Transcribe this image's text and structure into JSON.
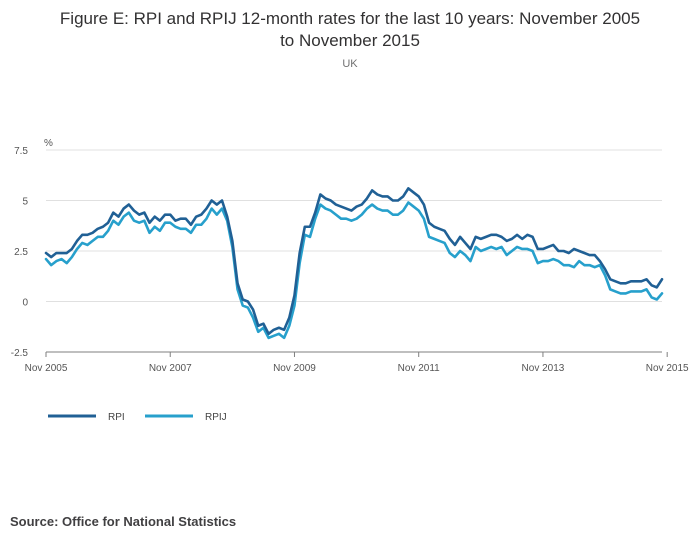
{
  "title_lines": [
    "Figure E: RPI and RPIJ 12-month rates for the last 10 years: November 2005",
    "to November 2015"
  ],
  "subtitle": "UK",
  "source": "Source: Office for National Statistics",
  "colors": {
    "RPI": "#206095",
    "RPIJ": "#27a0cc",
    "grid": "#e0e0e0",
    "axis": "#7f7f7f"
  },
  "chart_data": {
    "type": "line",
    "ylabel": "%",
    "ylim": [
      -2.5,
      7.5
    ],
    "yticks": [
      -2.5,
      0,
      2.5,
      5,
      7.5
    ],
    "ytick_labels": [
      "-2.5",
      "0",
      "2.5",
      "5",
      "7.5"
    ],
    "xtick_labels": [
      "Nov 2005",
      "Nov 2007",
      "Nov 2009",
      "Nov 2011",
      "Nov 2013",
      "Nov 2015"
    ],
    "xtick_index": [
      0,
      24,
      48,
      72,
      96,
      120
    ],
    "grid": true,
    "legend_position": "bottom-left",
    "series": [
      {
        "name": "RPI",
        "values": [
          2.4,
          2.2,
          2.4,
          2.4,
          2.4,
          2.6,
          3.0,
          3.3,
          3.3,
          3.4,
          3.6,
          3.7,
          3.9,
          4.4,
          4.2,
          4.6,
          4.8,
          4.5,
          4.3,
          4.4,
          3.9,
          4.2,
          4.0,
          4.3,
          4.3,
          4.0,
          4.1,
          4.1,
          3.8,
          4.2,
          4.3,
          4.6,
          5.0,
          4.8,
          5.0,
          4.2,
          3.0,
          0.9,
          0.1,
          0.0,
          -0.4,
          -1.2,
          -1.1,
          -1.6,
          -1.4,
          -1.3,
          -1.4,
          -0.8,
          0.3,
          2.4,
          3.7,
          3.7,
          4.4,
          5.3,
          5.1,
          5.0,
          4.8,
          4.7,
          4.6,
          4.5,
          4.7,
          4.8,
          5.1,
          5.5,
          5.3,
          5.2,
          5.2,
          5.0,
          5.0,
          5.2,
          5.6,
          5.4,
          5.2,
          4.8,
          3.9,
          3.7,
          3.6,
          3.5,
          3.1,
          2.8,
          3.2,
          2.9,
          2.6,
          3.2,
          3.1,
          3.2,
          3.3,
          3.3,
          3.2,
          3.0,
          3.1,
          3.3,
          3.1,
          3.3,
          3.2,
          2.6,
          2.6,
          2.7,
          2.8,
          2.5,
          2.5,
          2.4,
          2.6,
          2.5,
          2.4,
          2.3,
          2.3,
          2.0,
          1.6,
          1.1,
          1.0,
          0.9,
          0.9,
          1.0,
          1.0,
          1.0,
          1.1,
          0.8,
          0.7,
          1.1
        ]
      },
      {
        "name": "RPIJ",
        "values": [
          2.1,
          1.8,
          2.0,
          2.1,
          1.9,
          2.2,
          2.6,
          2.9,
          2.8,
          3.0,
          3.2,
          3.2,
          3.5,
          4.0,
          3.8,
          4.2,
          4.4,
          4.0,
          3.9,
          4.0,
          3.4,
          3.7,
          3.5,
          3.9,
          3.9,
          3.7,
          3.6,
          3.6,
          3.4,
          3.8,
          3.8,
          4.1,
          4.6,
          4.3,
          4.6,
          4.0,
          2.7,
          0.6,
          -0.2,
          -0.3,
          -0.8,
          -1.5,
          -1.3,
          -1.8,
          -1.7,
          -1.6,
          -1.8,
          -1.2,
          -0.2,
          1.9,
          3.3,
          3.2,
          4.1,
          4.8,
          4.6,
          4.5,
          4.3,
          4.1,
          4.1,
          4.0,
          4.1,
          4.3,
          4.6,
          4.8,
          4.6,
          4.5,
          4.5,
          4.3,
          4.3,
          4.5,
          4.9,
          4.7,
          4.5,
          4.1,
          3.2,
          3.1,
          3.0,
          2.9,
          2.4,
          2.2,
          2.5,
          2.3,
          2.0,
          2.7,
          2.5,
          2.6,
          2.7,
          2.6,
          2.7,
          2.3,
          2.5,
          2.7,
          2.6,
          2.6,
          2.5,
          1.9,
          2.0,
          2.0,
          2.1,
          2.0,
          1.8,
          1.8,
          1.7,
          2.0,
          1.8,
          1.8,
          1.7,
          1.8,
          1.3,
          0.6,
          0.5,
          0.4,
          0.4,
          0.5,
          0.5,
          0.5,
          0.6,
          0.2,
          0.1,
          0.4
        ]
      }
    ]
  }
}
